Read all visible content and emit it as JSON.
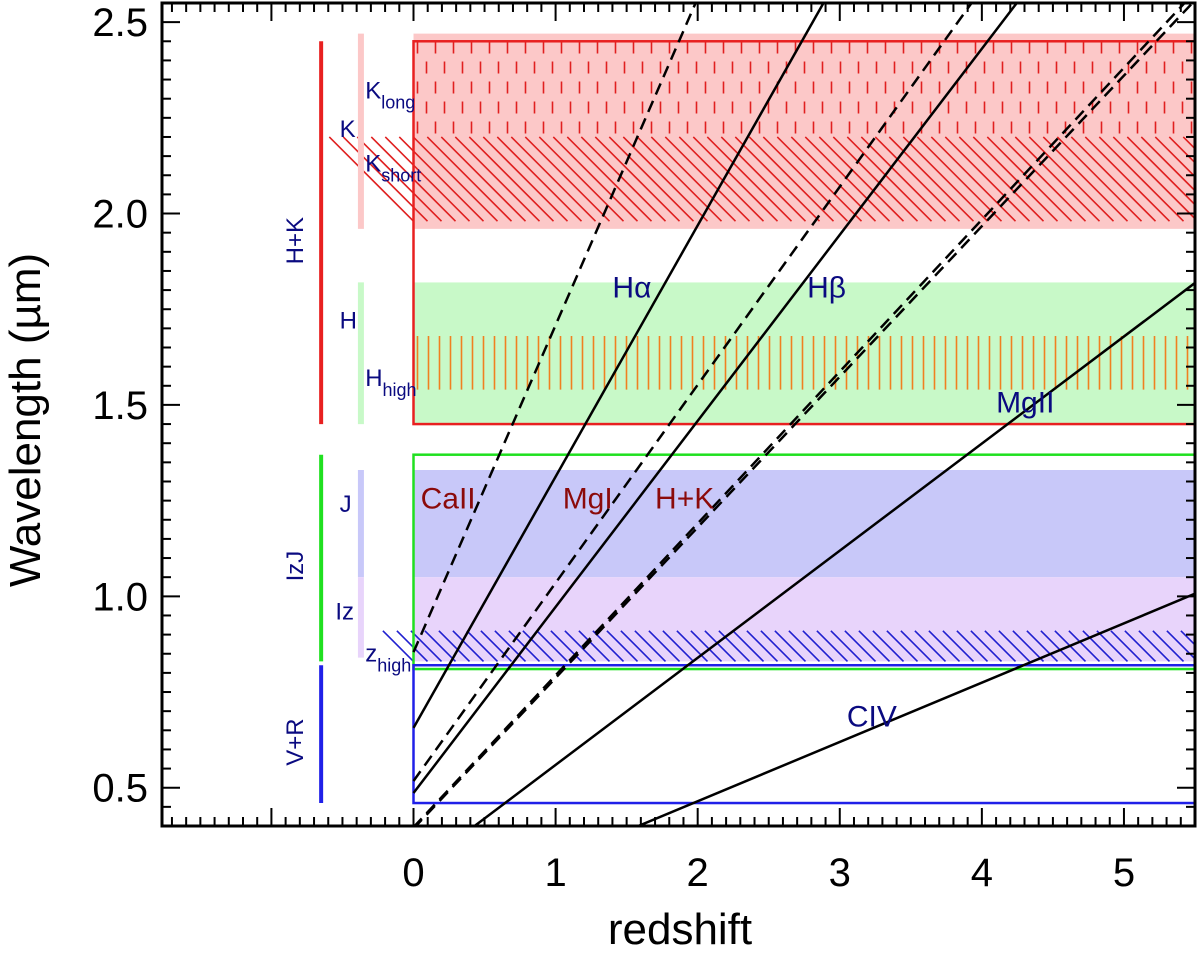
{
  "chart_data": {
    "type": "line",
    "title": "",
    "xlabel": "redshift",
    "ylabel": "Wavelength (µm)",
    "xlim": [
      -1.77,
      5.5
    ],
    "ylim": [
      0.4,
      2.55
    ],
    "x_ticks": [
      {
        "value": 0,
        "label": "0"
      },
      {
        "value": 1,
        "label": "1"
      },
      {
        "value": 2,
        "label": "2"
      },
      {
        "value": 3,
        "label": "3"
      },
      {
        "value": 4,
        "label": "4"
      },
      {
        "value": 5,
        "label": "5"
      }
    ],
    "y_ticks": [
      {
        "value": 0.5,
        "label": "0.5"
      },
      {
        "value": 1.0,
        "label": "1.0"
      },
      {
        "value": 1.5,
        "label": "1.5"
      },
      {
        "value": 2.0,
        "label": "2.0"
      },
      {
        "value": 2.5,
        "label": "2.5"
      }
    ],
    "shaded_bands": [
      {
        "name": "K",
        "y": [
          1.96,
          2.47
        ],
        "color": "#fcc8c8"
      },
      {
        "name": "H",
        "y": [
          1.45,
          1.82
        ],
        "color": "#c8f9c8"
      },
      {
        "name": "J",
        "y": [
          1.05,
          1.33
        ],
        "color": "#c8c8f9"
      },
      {
        "name": "Iz",
        "y": [
          0.83,
          1.05
        ],
        "color": "#e8d4fb"
      }
    ],
    "hatched_bands": [
      {
        "name": "K_long",
        "y": [
          2.2,
          2.46
        ],
        "pattern": "vertical-dashes",
        "color": "#e02020"
      },
      {
        "name": "K_short",
        "y": [
          1.98,
          2.2
        ],
        "pattern": "diagonal",
        "color": "#e02020"
      },
      {
        "name": "H_high",
        "y": [
          1.54,
          1.68
        ],
        "pattern": "vertical",
        "color": "#f08020"
      },
      {
        "name": "z_high",
        "y": [
          0.83,
          0.91
        ],
        "pattern": "diagonal",
        "color": "#2020d0"
      }
    ],
    "arm_boxes": [
      {
        "name": "H+K",
        "y": [
          1.45,
          2.45
        ],
        "x": [
          0,
          5.5
        ],
        "color": "#e82020"
      },
      {
        "name": "IzJ",
        "y": [
          0.81,
          1.37
        ],
        "x": [
          0,
          5.5
        ],
        "color": "#20e020"
      },
      {
        "name": "V+R",
        "y": [
          0.46,
          0.82
        ],
        "x": [
          0,
          5.5
        ],
        "color": "#2020e8"
      }
    ],
    "coverage_bars": [
      {
        "label": "H+K",
        "x": -0.65,
        "y": [
          1.45,
          2.45
        ],
        "color": "#e82020"
      },
      {
        "label": "IzJ",
        "x": -0.65,
        "y": [
          0.83,
          1.37
        ],
        "color": "#20e020"
      },
      {
        "label": "V+R",
        "x": -0.65,
        "y": [
          0.46,
          0.82
        ],
        "color": "#2020e8"
      },
      {
        "label": "K",
        "x": -0.37,
        "y": [
          1.96,
          2.47
        ],
        "color": "#fcc8c8"
      },
      {
        "label": "H",
        "x": -0.37,
        "y": [
          1.45,
          1.82
        ],
        "color": "#c8f9c8"
      },
      {
        "label": "J",
        "x": -0.37,
        "y": [
          1.05,
          1.33
        ],
        "color": "#c8c8f9"
      },
      {
        "label": "Iz",
        "x": -0.37,
        "y": [
          0.84,
          1.05
        ],
        "color": "#e8d4fb"
      }
    ],
    "band_labels": [
      {
        "base": "K",
        "sub": "long",
        "x": -0.34,
        "y": 2.3
      },
      {
        "base": "K",
        "sub": "",
        "x": -0.52,
        "y": 2.2
      },
      {
        "base": "K",
        "sub": "short",
        "x": -0.34,
        "y": 2.11
      },
      {
        "base": "H",
        "sub": "",
        "x": -0.52,
        "y": 1.7
      },
      {
        "base": "H",
        "sub": "high",
        "x": -0.34,
        "y": 1.55
      },
      {
        "base": "J",
        "sub": "",
        "x": -0.52,
        "y": 1.22
      },
      {
        "base": "Iz",
        "sub": "",
        "x": -0.55,
        "y": 0.94
      },
      {
        "base": "z",
        "sub": "high",
        "x": -0.34,
        "y": 0.83
      }
    ],
    "series": [
      {
        "name": "Hα",
        "rest_um": 0.6563,
        "style": "solid"
      },
      {
        "name": "Hβ",
        "rest_um": 0.4861,
        "style": "solid"
      },
      {
        "name": "MgII",
        "rest_um": 0.2798,
        "style": "solid"
      },
      {
        "name": "CIV",
        "rest_um": 0.1549,
        "style": "solid"
      },
      {
        "name": "CaII",
        "rest_um": 0.8542,
        "style": "dashed"
      },
      {
        "name": "MgI",
        "rest_um": 0.5175,
        "style": "dashed"
      },
      {
        "name": "H+K",
        "rest_um": 0.3934,
        "style": "dashed"
      },
      {
        "name": "H+K",
        "rest_um": 0.3968,
        "style": "dashed"
      }
    ],
    "line_labels": [
      {
        "text": "Hα",
        "x": 1.4,
        "y": 1.78,
        "color": "blue"
      },
      {
        "text": "Hβ",
        "x": 2.77,
        "y": 1.78,
        "color": "blue"
      },
      {
        "text": "MgII",
        "x": 4.1,
        "y": 1.48,
        "color": "blue"
      },
      {
        "text": "CIV",
        "x": 3.05,
        "y": 0.66,
        "color": "blue"
      },
      {
        "text": "CaII",
        "x": 0.05,
        "y": 1.23,
        "color": "red"
      },
      {
        "text": "MgI",
        "x": 1.05,
        "y": 1.23,
        "color": "red"
      },
      {
        "text": "H+K",
        "x": 1.7,
        "y": 1.23,
        "color": "red"
      }
    ]
  }
}
